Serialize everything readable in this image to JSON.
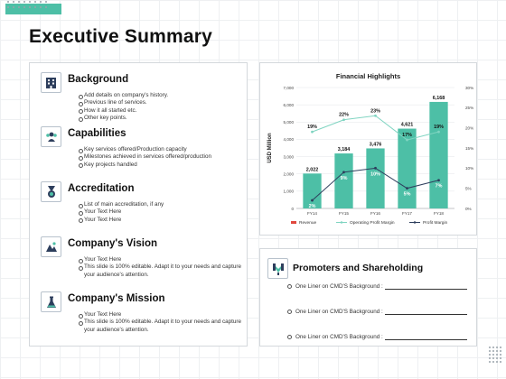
{
  "page": {
    "title": "Executive Summary"
  },
  "sections": [
    {
      "title": "Background",
      "icon": "building-icon",
      "items": [
        "Add details on company's history.",
        "Previous line of services.",
        "How it all started etc.",
        "Other key points."
      ]
    },
    {
      "title": "Capabilities",
      "icon": "people-icon",
      "items": [
        "Key services offered/Production capacity",
        "Milestones achieved in services offered/production",
        "Key projects handled"
      ]
    },
    {
      "title": "Accreditation",
      "icon": "medal-icon",
      "items": [
        "List of main accreditation, if any",
        "Your Text Here",
        "Your Text Here"
      ]
    },
    {
      "title": "Company's Vision",
      "icon": "vision-icon",
      "items": [
        "Your Text Here",
        "This slide is 100% editable. Adapt it to your needs and capture your audience's attention."
      ]
    },
    {
      "title": "Company's Mission",
      "icon": "flask-icon",
      "items": [
        "Your Text Here",
        "This slide is 100% editable. Adapt it to your needs and capture your audience's attention."
      ]
    }
  ],
  "promoters": {
    "title": "Promoters and Shareholding",
    "icon": "handshake-icon",
    "lines": [
      "One Liner on CMD'S Background :",
      "One Liner on CMD'S Background :",
      "One Liner on CMD'S Background :"
    ]
  },
  "chart_data": {
    "type": "bar",
    "title": "Financial Highlights",
    "categories": [
      "FY14",
      "FY15",
      "FY16",
      "FY17",
      "FY18"
    ],
    "ylabel": "USD Million",
    "ylim": [
      0,
      7000
    ],
    "y_ticks": [
      "0",
      "1,000",
      "2,000",
      "3,000",
      "4,000",
      "5,000",
      "6,000",
      "7,000"
    ],
    "y2lim": [
      0,
      30
    ],
    "y2_ticks": [
      "0%",
      "5%",
      "10%",
      "15%",
      "20%",
      "25%",
      "30%"
    ],
    "series": [
      {
        "name": "Revenue",
        "axis": "left",
        "type": "bar",
        "values": [
          2022,
          3184,
          3476,
          4621,
          6168
        ],
        "labels": [
          "2,022",
          "3,184",
          "3,476",
          "4,621",
          "6,168"
        ]
      },
      {
        "name": "Operating Profit Margin",
        "axis": "right",
        "type": "line",
        "values": [
          19,
          22,
          23,
          17,
          19
        ],
        "labels": [
          "19%",
          "22%",
          "23%",
          "17%",
          "19%"
        ]
      },
      {
        "name": "Profit Margin",
        "axis": "right",
        "type": "line",
        "values": [
          2,
          9,
          10,
          5,
          7
        ],
        "labels": [
          "2%",
          "9%",
          "10%",
          "5%",
          "7%"
        ]
      }
    ],
    "legend": "bottom",
    "colors": {
      "bar": "#4dbfa6",
      "opm": "#7fd4c1",
      "pm": "#2d3e5c"
    }
  }
}
